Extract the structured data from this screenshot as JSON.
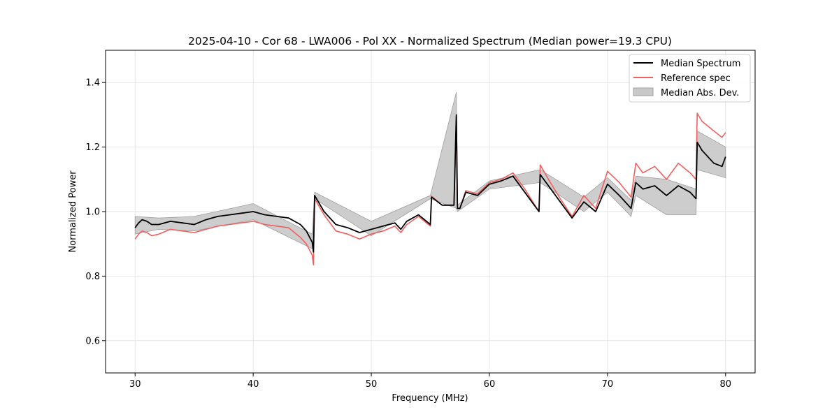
{
  "chart_data": {
    "type": "line",
    "title": "2025-04-10 - Cor 68 - LWA006 - Pol XX - Normalized Spectrum (Median power=19.3 CPU)",
    "xlabel": "Frequency (MHz)",
    "ylabel": "Normalized Power",
    "xlim": [
      27.5,
      82.5
    ],
    "ylim": [
      0.5,
      1.5
    ],
    "xticks": [
      30,
      40,
      50,
      60,
      70,
      80
    ],
    "yticks": [
      0.6,
      0.8,
      1.0,
      1.2,
      1.4
    ],
    "xtick_labels": [
      "30",
      "40",
      "50",
      "60",
      "70",
      "80"
    ],
    "ytick_labels": [
      "0.6",
      "0.8",
      "1.0",
      "1.2",
      "1.4"
    ],
    "grid": true,
    "legend_position": "top-right",
    "legend": [
      "Median Spectrum",
      "Reference spec",
      "Median Abs. Dev."
    ],
    "colors": {
      "median": "#000000",
      "reference": "#f06060",
      "band": "#c8c8c8",
      "band_edge": "#a0a0a0"
    },
    "series": [
      {
        "name": "Median Spectrum",
        "x": [
          30,
          30.3,
          30.6,
          31.0,
          31.4,
          32.0,
          33.0,
          34.0,
          35.0,
          36.0,
          37.0,
          38.0,
          39.0,
          40.0,
          41.0,
          42.0,
          43.0,
          44.0,
          44.5,
          45.0,
          45.1,
          45.2,
          46.0,
          47.0,
          48.0,
          49.0,
          50.0,
          51.0,
          52.0,
          52.5,
          53.0,
          54.0,
          55.0,
          55.1,
          56.0,
          57.0,
          57.2,
          57.3,
          57.5,
          58.0,
          59.0,
          60.0,
          61.0,
          62.0,
          63.0,
          64.2,
          64.3,
          65.0,
          66.0,
          67.0,
          68.0,
          69.0,
          70.0,
          71.0,
          72.0,
          72.4,
          73.0,
          74.0,
          75.0,
          76.0,
          77.0,
          77.5,
          77.6,
          78.0,
          79.0,
          79.7,
          80.0
        ],
        "values": [
          0.95,
          0.965,
          0.975,
          0.97,
          0.96,
          0.96,
          0.97,
          0.965,
          0.96,
          0.975,
          0.985,
          0.99,
          0.995,
          1.0,
          0.99,
          0.985,
          0.98,
          0.96,
          0.94,
          0.905,
          0.875,
          1.05,
          1.0,
          0.96,
          0.95,
          0.935,
          0.945,
          0.955,
          0.965,
          0.945,
          0.97,
          0.99,
          0.96,
          1.045,
          1.02,
          1.02,
          1.3,
          1.01,
          1.01,
          1.06,
          1.05,
          1.085,
          1.095,
          1.11,
          1.06,
          1.0,
          1.115,
          1.08,
          1.03,
          0.98,
          1.03,
          1.0,
          1.085,
          1.05,
          1.01,
          1.09,
          1.07,
          1.08,
          1.05,
          1.08,
          1.06,
          1.04,
          1.215,
          1.19,
          1.15,
          1.14,
          1.17
        ]
      },
      {
        "name": "Reference spec",
        "x": [
          30,
          30.3,
          30.6,
          31.0,
          31.4,
          32.0,
          33.0,
          34.0,
          35.0,
          36.0,
          37.0,
          38.0,
          39.0,
          40.0,
          41.0,
          42.0,
          43.0,
          44.0,
          44.5,
          45.0,
          45.1,
          45.2,
          46.0,
          47.0,
          48.0,
          49.0,
          50.0,
          51.0,
          52.0,
          52.5,
          53.0,
          54.0,
          55.0,
          55.1,
          56.0,
          57.0,
          57.2,
          57.3,
          57.5,
          58.0,
          59.0,
          60.0,
          61.0,
          62.0,
          63.0,
          64.2,
          64.3,
          65.0,
          66.0,
          67.0,
          68.0,
          69.0,
          70.0,
          71.0,
          72.0,
          72.4,
          73.0,
          74.0,
          75.0,
          76.0,
          77.0,
          77.5,
          77.6,
          78.0,
          79.0,
          79.7,
          80.0
        ],
        "values": [
          0.915,
          0.93,
          0.94,
          0.935,
          0.925,
          0.93,
          0.945,
          0.94,
          0.935,
          0.945,
          0.955,
          0.96,
          0.965,
          0.97,
          0.96,
          0.955,
          0.95,
          0.92,
          0.9,
          0.865,
          0.835,
          1.04,
          0.99,
          0.94,
          0.93,
          0.915,
          0.93,
          0.94,
          0.955,
          0.935,
          0.96,
          0.985,
          0.955,
          1.048,
          1.02,
          1.02,
          1.29,
          1.01,
          1.01,
          1.065,
          1.055,
          1.09,
          1.1,
          1.12,
          1.07,
          1.0,
          1.145,
          1.1,
          1.04,
          0.985,
          1.05,
          1.01,
          1.125,
          1.09,
          1.045,
          1.15,
          1.12,
          1.14,
          1.1,
          1.15,
          1.12,
          1.1,
          1.305,
          1.28,
          1.25,
          1.23,
          1.245
        ]
      }
    ],
    "bands": [
      {
        "name": "Median Abs. Dev.",
        "x": [
          30,
          32.0,
          35.0,
          40.0,
          45.0,
          45.2,
          50.0,
          55.0,
          57.2,
          57.3,
          60.0,
          64.3,
          68.0,
          70.0,
          72.0,
          72.4,
          75.0,
          77.5,
          77.6,
          80.0
        ],
        "upper": [
          0.985,
          0.98,
          0.985,
          1.025,
          0.93,
          1.06,
          0.97,
          1.05,
          1.37,
          1.02,
          1.095,
          1.13,
          1.045,
          1.105,
          1.035,
          1.11,
          1.1,
          1.07,
          1.25,
          1.2
        ],
        "lower": [
          0.93,
          0.945,
          0.94,
          0.975,
          0.885,
          1.04,
          0.925,
          1.04,
          1.01,
          1.0,
          1.07,
          1.09,
          1.0,
          1.06,
          0.985,
          1.05,
          0.99,
          0.99,
          1.13,
          1.105
        ]
      }
    ]
  }
}
